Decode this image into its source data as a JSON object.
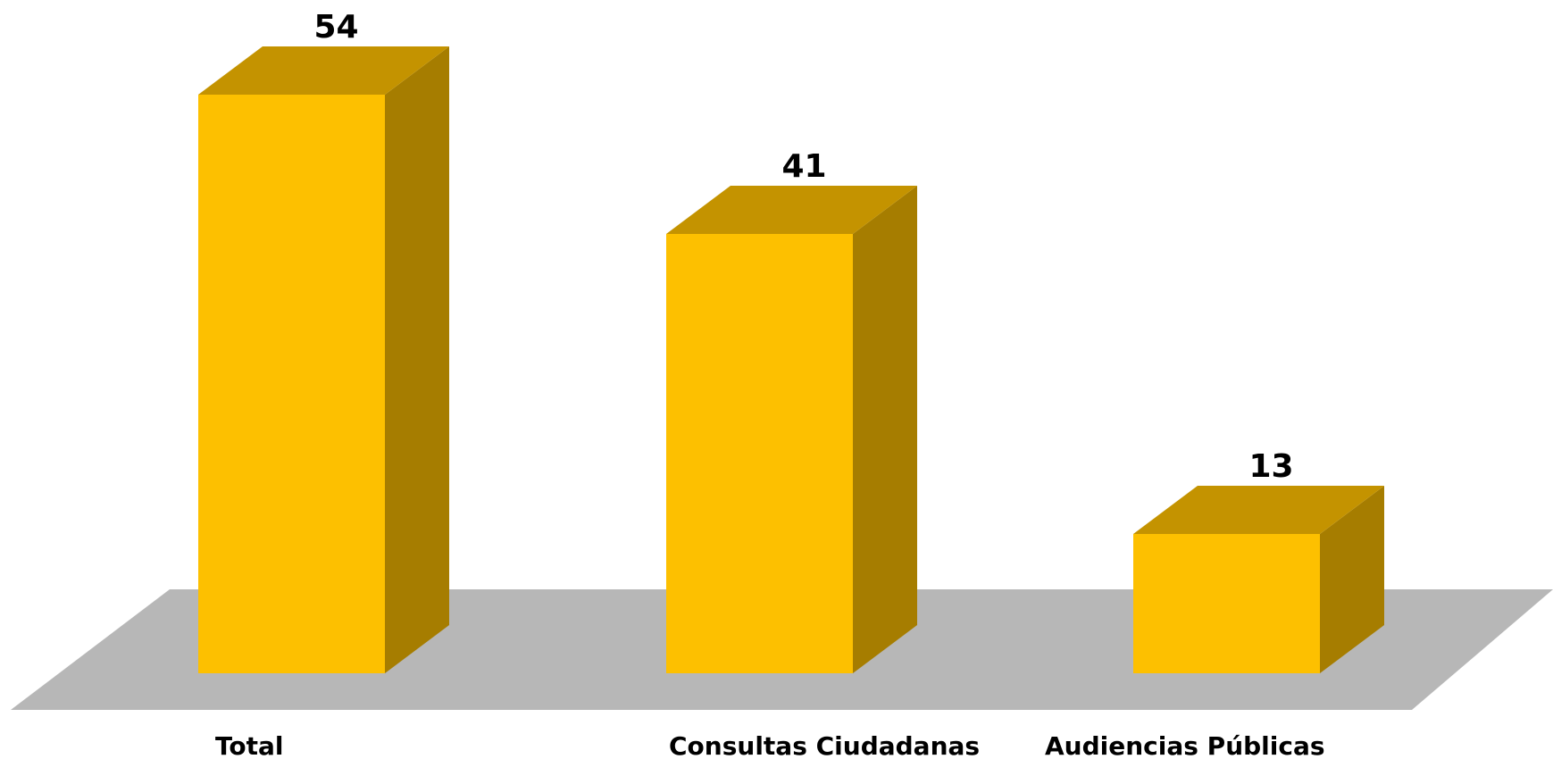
{
  "chart_data": {
    "type": "bar",
    "categories": [
      "Total",
      "Consultas Ciudadanas",
      "Audiencias Públicas"
    ],
    "values": [
      54,
      41,
      13
    ],
    "data_labels": [
      "54",
      "41",
      "13"
    ],
    "title": "",
    "xlabel": "",
    "ylabel": "",
    "ylim": [
      0,
      54
    ],
    "grid": false,
    "legend": "none",
    "style": "3d-column"
  },
  "colors": {
    "bar_front": "#FDC000",
    "bar_top": "#C49300",
    "bar_side": "#A67D00",
    "floor": "#B7B7B7"
  }
}
